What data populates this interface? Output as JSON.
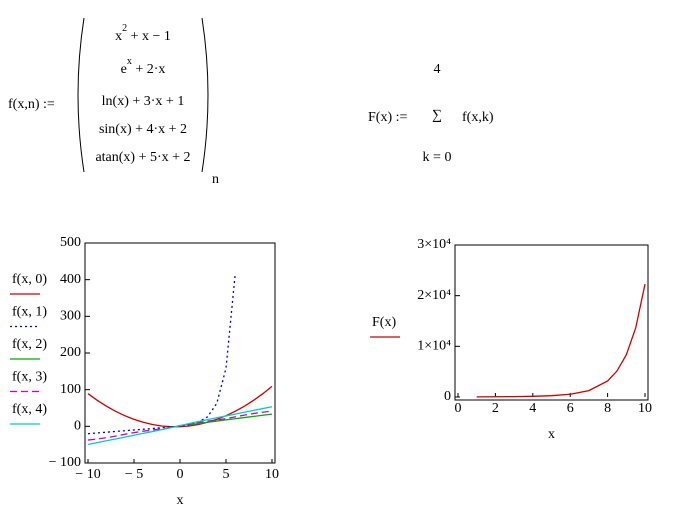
{
  "formulas": {
    "f_lhs": "f(x,n) :=",
    "f_rows": [
      {
        "base": "x",
        "sup": "2",
        "rest": " + x − 1"
      },
      {
        "base": "e",
        "sup": "x",
        "rest": " + 2·x"
      },
      "ln(x) + 3·x + 1",
      "sin(x) + 4·x + 2",
      "atan(x) + 5·x + 2"
    ],
    "f_subscript": "n",
    "F_lhs": "F(x) :=",
    "sum_symbol": "∑",
    "sum_upper": "4",
    "sum_lower": "k = 0",
    "sum_body": "f(x,k)"
  },
  "chart_data": [
    {
      "type": "line",
      "xlabel": "x",
      "x": [
        -10,
        -9,
        -8,
        -7,
        -6,
        -5,
        -4,
        -3,
        -2,
        -1,
        0,
        1,
        2,
        3,
        4,
        5,
        6,
        7,
        8,
        9,
        10
      ],
      "xlim": [
        -10,
        10
      ],
      "ylim": [
        -100,
        500
      ],
      "xticks": [
        {
          "value": -10,
          "label": "− 10"
        },
        {
          "value": -5,
          "label": "− 5"
        },
        0,
        5,
        10
      ],
      "yticks": [
        {
          "value": -100,
          "label": "− 100"
        },
        0,
        100,
        200,
        300,
        400,
        500
      ],
      "series": [
        {
          "name": "f(x, 0)",
          "color": "#cc0000",
          "style": "solid",
          "values": [
            89,
            71,
            55,
            41,
            29,
            19,
            11,
            5,
            1,
            -1,
            -1,
            1,
            5,
            11,
            19,
            29,
            41,
            55,
            71,
            89,
            109
          ]
        },
        {
          "name": "f(x, 1)",
          "color": "#0000cc",
          "style": "dotted",
          "values": [
            -20.0,
            -18.0,
            -16.0,
            -14.0,
            -12.0,
            -9.99,
            -7.98,
            -5.95,
            -3.86,
            -1.63,
            1,
            4.72,
            11.39,
            26.09,
            62.6,
            158.4,
            415.4,
            null,
            null,
            null,
            null
          ]
        },
        {
          "name": "f(x, 2)",
          "color": "#00aa00",
          "style": "solid",
          "values": [
            null,
            null,
            null,
            null,
            null,
            null,
            null,
            null,
            null,
            null,
            null,
            4,
            7.69,
            11.1,
            14.39,
            17.61,
            20.79,
            23.95,
            27.08,
            30.2,
            33.3
          ]
        },
        {
          "name": "f(x, 3)",
          "color": "#cc00cc",
          "style": "dashed",
          "values": [
            -37.46,
            -34.41,
            -30.99,
            -26.66,
            -21.72,
            -17.04,
            -13.24,
            -10.14,
            -6.91,
            -2.84,
            2,
            6.84,
            10.91,
            14.14,
            17.24,
            21.04,
            25.72,
            30.66,
            34.99,
            38.41,
            41.46
          ]
        },
        {
          "name": "f(x, 4)",
          "color": "#00cccc",
          "style": "solid",
          "values": [
            -49.47,
            -44.46,
            -39.45,
            -34.43,
            -29.41,
            -24.37,
            -19.33,
            -14.25,
            -9.11,
            -3.79,
            2,
            7.79,
            13.11,
            18.25,
            23.33,
            28.37,
            33.41,
            38.43,
            43.45,
            48.46,
            53.47
          ]
        }
      ]
    },
    {
      "type": "line",
      "xlabel": "x",
      "x": [
        1,
        2,
        3,
        4,
        5,
        6,
        7,
        8,
        8.5,
        9,
        9.5,
        10
      ],
      "xlim": [
        0,
        10
      ],
      "ylim": [
        0,
        30000
      ],
      "xticks": [
        0,
        2,
        4,
        6,
        8,
        10
      ],
      "yticks": [
        0,
        {
          "value": 10000,
          "label": "1×10⁴"
        },
        {
          "value": 20000,
          "label": "2×10⁴"
        },
        {
          "value": 30000,
          "label": "3×10⁴"
        }
      ],
      "series": [
        {
          "name": "F(x)",
          "color": "#cc0000",
          "style": "solid",
          "values": [
            24.34,
            48.1,
            80.58,
            136.56,
            254.43,
            536.35,
            1258.66,
            3173.47,
            5122.91,
            8327.15,
            13600.27,
            22283.7
          ]
        }
      ]
    }
  ]
}
